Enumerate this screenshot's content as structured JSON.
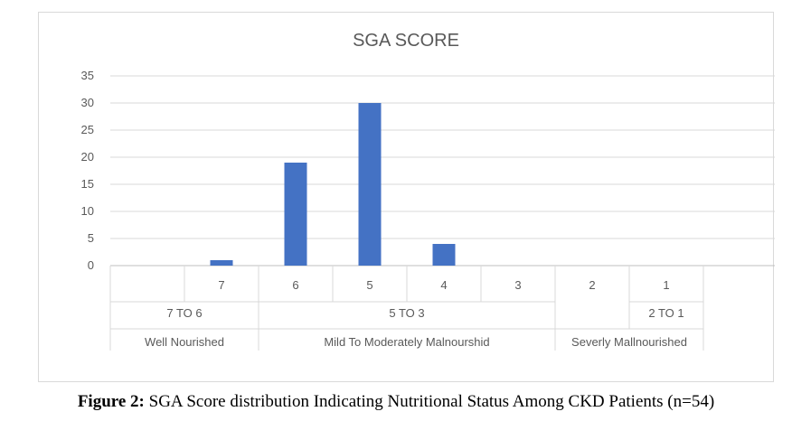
{
  "chart_data": {
    "type": "bar",
    "title": "SGA SCORE",
    "categories": [
      "",
      "7",
      "6",
      "5",
      "4",
      "3",
      "2",
      "1"
    ],
    "values": [
      null,
      1,
      19,
      30,
      4,
      0,
      0,
      0
    ],
    "ylim": [
      0,
      35
    ],
    "yticks": [
      "0",
      "5",
      "10",
      "15",
      "20",
      "25",
      "30",
      "35"
    ],
    "score_groups": [
      {
        "label": "7 TO 6",
        "span": [
          0,
          1
        ]
      },
      {
        "label": "5 TO 3",
        "span": [
          2,
          5
        ]
      },
      {
        "label": "2 TO 1",
        "span": [
          7,
          7
        ]
      }
    ],
    "status_groups": [
      {
        "label": "Well Nourished",
        "span": [
          0,
          1
        ]
      },
      {
        "label": "Mild To Moderately Malnourshid",
        "span": [
          2,
          5
        ]
      },
      {
        "label": "Severly Mallnourished",
        "span": [
          6,
          7
        ]
      }
    ],
    "grid": true,
    "bar_color": "#4472c4"
  },
  "caption": {
    "prefix": "Figure 2:",
    "text": " SGA Score distribution Indicating Nutritional Status Among CKD Patients (n=54)"
  }
}
